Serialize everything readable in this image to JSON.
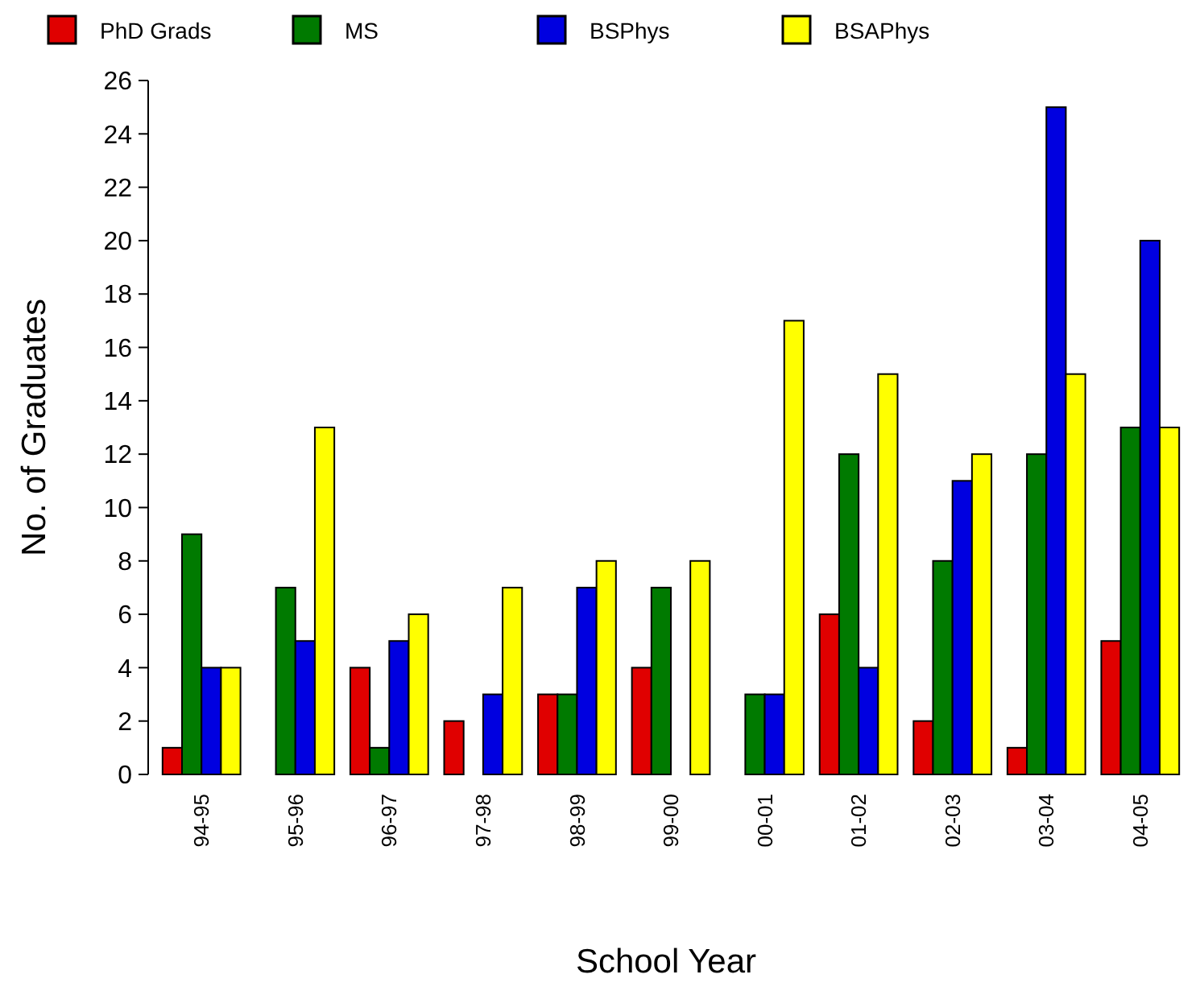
{
  "chart_data": {
    "type": "bar",
    "xlabel": "School Year",
    "ylabel": "No. of Graduates",
    "categories": [
      "94-95",
      "95-96",
      "96-97",
      "97-98",
      "98-99",
      "99-00",
      "00-01",
      "01-02",
      "02-03",
      "03-04",
      "04-05"
    ],
    "series": [
      {
        "name": "PhD Grads",
        "color": "#e00000",
        "values": [
          1,
          0,
          4,
          2,
          3,
          4,
          0,
          6,
          2,
          1,
          5
        ]
      },
      {
        "name": "MS",
        "color": "#007a00",
        "values": [
          9,
          7,
          1,
          0,
          3,
          7,
          3,
          12,
          8,
          12,
          13
        ]
      },
      {
        "name": "BSPhys",
        "color": "#0000e0",
        "values": [
          4,
          5,
          5,
          3,
          7,
          0,
          3,
          4,
          11,
          25,
          20
        ]
      },
      {
        "name": "BSAPhys",
        "color": "#ffff00",
        "values": [
          4,
          13,
          6,
          7,
          8,
          8,
          17,
          15,
          12,
          15,
          13
        ]
      }
    ],
    "ylim": [
      0,
      26
    ],
    "yticks": [
      0,
      2,
      4,
      6,
      8,
      10,
      12,
      14,
      16,
      18,
      20,
      22,
      24,
      26
    ],
    "grid": false,
    "legend": "top"
  }
}
